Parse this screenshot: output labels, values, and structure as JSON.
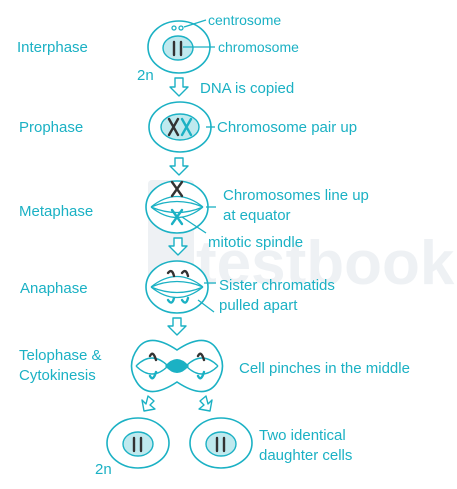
{
  "watermark": "testbook",
  "stages": {
    "interphase": "Interphase",
    "prophase": "Prophase",
    "metaphase": "Metaphase",
    "anaphase": "Anaphase",
    "telophase_line1": "Telophase &",
    "telophase_line2": "Cytokinesis"
  },
  "labels": {
    "centrosome": "centrosome",
    "chromosome": "chromosome",
    "dna_copied": "DNA is copied",
    "pair_up": "Chromosome pair up",
    "line_up_1": "Chromosomes line up",
    "line_up_2": "at equator",
    "mitotic_spindle": "mitotic spindle",
    "sister_1": "Sister chromatids",
    "sister_2": "pulled apart",
    "pinches": "Cell pinches in the middle",
    "daughter_1": "Two identical",
    "daughter_2": "daughter cells",
    "ploidy_top": "2n",
    "ploidy_bottom": "2n"
  }
}
